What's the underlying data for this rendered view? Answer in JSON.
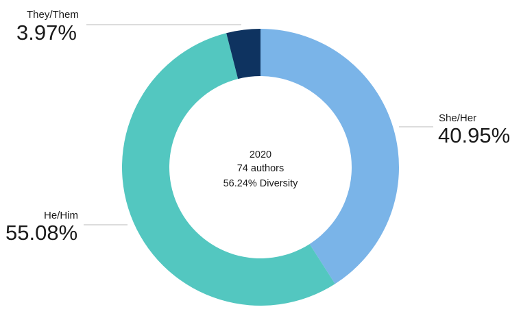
{
  "chart_data": {
    "type": "pie",
    "variant": "donut",
    "categories": [
      "She/Her",
      "He/Him",
      "They/Them"
    ],
    "values": [
      40.95,
      55.08,
      3.97
    ],
    "value_labels": [
      "40.95%",
      "55.08%",
      "3.97%"
    ],
    "colors": [
      "#7ab4e8",
      "#53c7c0",
      "#0e3360"
    ],
    "start": "12 o'clock",
    "direction": "clockwise",
    "center_text": [
      "2020",
      "74 authors",
      "56.24% Diversity"
    ],
    "legend": "none"
  }
}
